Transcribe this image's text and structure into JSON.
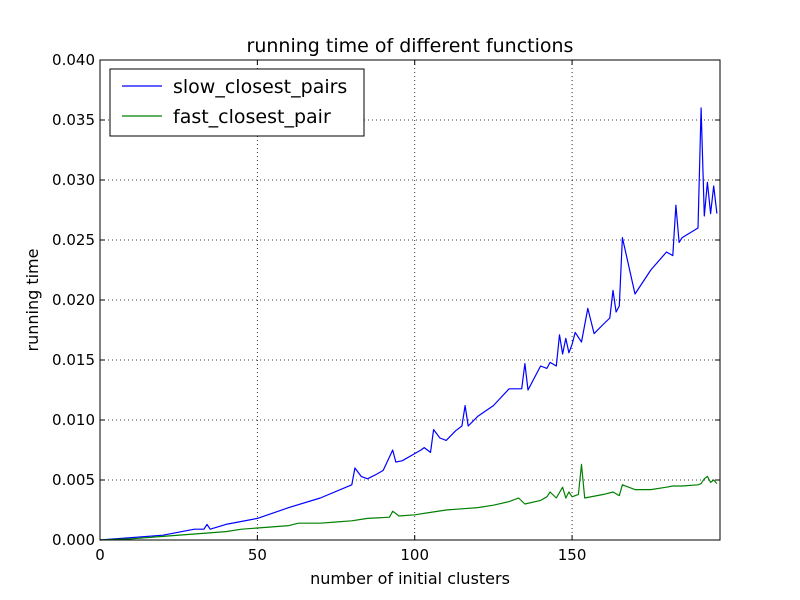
{
  "chart_data": {
    "type": "line",
    "title": "running time of different functions",
    "xlabel": "number of initial clusters",
    "ylabel": "running time",
    "xlim": [
      0,
      197
    ],
    "ylim": [
      0,
      0.04
    ],
    "xticks": [
      0,
      50,
      100,
      150
    ],
    "xtick_labels": [
      "0",
      "50",
      "100",
      "150"
    ],
    "yticks": [
      0,
      0.005,
      0.01,
      0.015,
      0.02,
      0.025,
      0.03,
      0.035,
      0.04
    ],
    "ytick_labels": [
      "0.000",
      "0.005",
      "0.010",
      "0.015",
      "0.020",
      "0.025",
      "0.030",
      "0.035",
      "0.040"
    ],
    "grid": true,
    "legend_position": "top-left",
    "series": [
      {
        "name": "slow_closest_pairs",
        "color": "#0000ff",
        "x": [
          0,
          10,
          20,
          30,
          33,
          34,
          35,
          40,
          50,
          60,
          70,
          80,
          81,
          83,
          85,
          88,
          90,
          93,
          94,
          96,
          100,
          102,
          103,
          105,
          106,
          108,
          110,
          113,
          115,
          116,
          117,
          120,
          125,
          130,
          134,
          135,
          136,
          140,
          142,
          143,
          145,
          146,
          147,
          148,
          149,
          150,
          151,
          153,
          155,
          157,
          160,
          162,
          163,
          164,
          165,
          166,
          170,
          175,
          180,
          182,
          183,
          184,
          185,
          190,
          191,
          192,
          193,
          194,
          195,
          196
        ],
        "y": [
          0,
          0.0002,
          0.0004,
          0.0009,
          0.0009,
          0.0013,
          0.0009,
          0.0013,
          0.0018,
          0.0027,
          0.0035,
          0.0046,
          0.006,
          0.0053,
          0.0051,
          0.0055,
          0.0058,
          0.0075,
          0.0065,
          0.0066,
          0.0072,
          0.0075,
          0.0077,
          0.0073,
          0.0092,
          0.0085,
          0.0083,
          0.0091,
          0.0095,
          0.0112,
          0.0095,
          0.0103,
          0.0112,
          0.0126,
          0.0126,
          0.0147,
          0.0125,
          0.0145,
          0.0143,
          0.0148,
          0.0145,
          0.0171,
          0.0155,
          0.0168,
          0.0156,
          0.0163,
          0.0173,
          0.0165,
          0.0193,
          0.0172,
          0.018,
          0.0185,
          0.0208,
          0.019,
          0.0195,
          0.0252,
          0.0205,
          0.0225,
          0.024,
          0.0237,
          0.0279,
          0.0248,
          0.0252,
          0.026,
          0.036,
          0.027,
          0.0298,
          0.0272,
          0.0295,
          0.0272
        ]
      },
      {
        "name": "fast_closest_pair",
        "color": "#008000",
        "x": [
          0,
          10,
          20,
          30,
          40,
          45,
          50,
          60,
          63,
          70,
          75,
          80,
          85,
          92,
          93,
          95,
          100,
          105,
          110,
          115,
          120,
          125,
          130,
          133,
          135,
          140,
          142,
          143,
          145,
          147,
          148,
          149,
          150,
          152,
          153,
          154,
          160,
          163,
          165,
          166,
          170,
          175,
          180,
          182,
          185,
          190,
          191,
          192,
          193,
          194,
          195,
          196
        ],
        "y": [
          0,
          0.0001,
          0.0003,
          0.0005,
          0.0007,
          0.0009,
          0.001,
          0.0012,
          0.0014,
          0.0014,
          0.0015,
          0.0016,
          0.0018,
          0.0019,
          0.0024,
          0.002,
          0.0021,
          0.0023,
          0.0025,
          0.0026,
          0.0027,
          0.0029,
          0.0032,
          0.0035,
          0.003,
          0.0033,
          0.0036,
          0.004,
          0.0035,
          0.0044,
          0.0035,
          0.004,
          0.0036,
          0.0038,
          0.0063,
          0.0035,
          0.0038,
          0.004,
          0.0037,
          0.0046,
          0.0042,
          0.0042,
          0.0044,
          0.0045,
          0.0045,
          0.0046,
          0.0047,
          0.0051,
          0.0053,
          0.0048,
          0.005,
          0.0047
        ]
      }
    ]
  }
}
